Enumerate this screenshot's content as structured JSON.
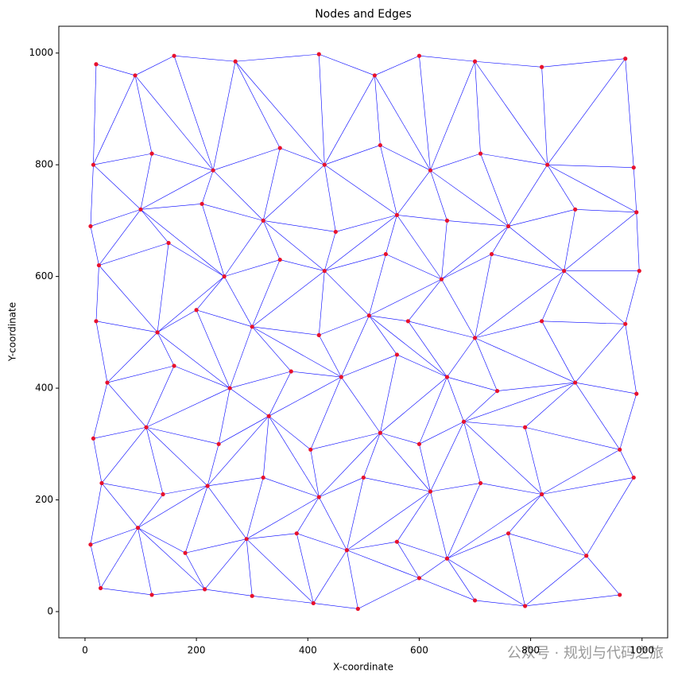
{
  "chart_data": {
    "type": "scatter",
    "title": "Nodes and Edges",
    "x_label": "X-coordinate",
    "y_label": "Y-coordinate",
    "watermark": "公众号 · 规划与代码之旅",
    "node_color": "#e8112d",
    "edge_color": "#0000ff",
    "xlim": [
      -47,
      1046
    ],
    "ylim": [
      -47,
      1048
    ],
    "xticks": [
      0,
      200,
      400,
      600,
      800,
      1000
    ],
    "yticks": [
      0,
      200,
      400,
      600,
      800,
      1000
    ],
    "x": [
      28,
      120,
      215,
      300,
      410,
      490,
      600,
      700,
      790,
      960,
      10,
      95,
      180,
      290,
      380,
      470,
      560,
      650,
      760,
      900,
      30,
      140,
      220,
      320,
      420,
      500,
      620,
      710,
      820,
      985,
      15,
      110,
      240,
      330,
      405,
      530,
      600,
      680,
      790,
      960,
      40,
      160,
      260,
      370,
      460,
      560,
      650,
      740,
      880,
      990,
      20,
      130,
      200,
      300,
      420,
      510,
      580,
      700,
      820,
      970,
      25,
      150,
      250,
      350,
      430,
      540,
      640,
      730,
      860,
      995,
      10,
      100,
      210,
      320,
      450,
      560,
      650,
      760,
      880,
      990,
      15,
      120,
      230,
      350,
      430,
      530,
      620,
      710,
      830,
      985,
      20,
      90,
      160,
      270,
      420,
      520,
      600,
      700,
      820,
      970
    ],
    "y": [
      42,
      30,
      40,
      28,
      15,
      5,
      60,
      20,
      10,
      30,
      120,
      150,
      105,
      130,
      140,
      110,
      125,
      95,
      140,
      100,
      230,
      210,
      225,
      240,
      205,
      240,
      215,
      230,
      210,
      240,
      310,
      330,
      300,
      350,
      290,
      320,
      300,
      340,
      330,
      290,
      410,
      440,
      400,
      430,
      420,
      460,
      420,
      395,
      410,
      390,
      520,
      500,
      540,
      510,
      495,
      530,
      520,
      490,
      520,
      515,
      620,
      660,
      600,
      630,
      610,
      640,
      595,
      640,
      610,
      610,
      690,
      720,
      730,
      700,
      680,
      710,
      700,
      690,
      720,
      715,
      800,
      820,
      790,
      830,
      800,
      835,
      790,
      820,
      800,
      795,
      980,
      960,
      995,
      985,
      998,
      960,
      995,
      985,
      975,
      990
    ],
    "edges": [
      [
        0,
        1
      ],
      [
        1,
        2
      ],
      [
        2,
        3
      ],
      [
        3,
        4
      ],
      [
        4,
        5
      ],
      [
        5,
        6
      ],
      [
        6,
        7
      ],
      [
        7,
        8
      ],
      [
        8,
        9
      ],
      [
        10,
        11
      ],
      [
        11,
        12
      ],
      [
        12,
        13
      ],
      [
        13,
        14
      ],
      [
        14,
        15
      ],
      [
        15,
        16
      ],
      [
        16,
        17
      ],
      [
        17,
        18
      ],
      [
        18,
        19
      ],
      [
        20,
        21
      ],
      [
        21,
        22
      ],
      [
        22,
        23
      ],
      [
        23,
        24
      ],
      [
        24,
        25
      ],
      [
        25,
        26
      ],
      [
        26,
        27
      ],
      [
        27,
        28
      ],
      [
        28,
        29
      ],
      [
        30,
        31
      ],
      [
        31,
        32
      ],
      [
        32,
        33
      ],
      [
        33,
        34
      ],
      [
        34,
        35
      ],
      [
        35,
        36
      ],
      [
        36,
        37
      ],
      [
        37,
        38
      ],
      [
        38,
        39
      ],
      [
        40,
        41
      ],
      [
        41,
        42
      ],
      [
        42,
        43
      ],
      [
        43,
        44
      ],
      [
        44,
        45
      ],
      [
        45,
        46
      ],
      [
        46,
        47
      ],
      [
        47,
        48
      ],
      [
        48,
        49
      ],
      [
        50,
        51
      ],
      [
        51,
        52
      ],
      [
        52,
        53
      ],
      [
        53,
        54
      ],
      [
        54,
        55
      ],
      [
        55,
        56
      ],
      [
        56,
        57
      ],
      [
        57,
        58
      ],
      [
        58,
        59
      ],
      [
        60,
        61
      ],
      [
        61,
        62
      ],
      [
        62,
        63
      ],
      [
        63,
        64
      ],
      [
        64,
        65
      ],
      [
        65,
        66
      ],
      [
        66,
        67
      ],
      [
        67,
        68
      ],
      [
        68,
        69
      ],
      [
        70,
        71
      ],
      [
        71,
        72
      ],
      [
        72,
        73
      ],
      [
        73,
        74
      ],
      [
        74,
        75
      ],
      [
        75,
        76
      ],
      [
        76,
        77
      ],
      [
        77,
        78
      ],
      [
        78,
        79
      ],
      [
        80,
        81
      ],
      [
        81,
        82
      ],
      [
        82,
        83
      ],
      [
        83,
        84
      ],
      [
        84,
        85
      ],
      [
        85,
        86
      ],
      [
        86,
        87
      ],
      [
        87,
        88
      ],
      [
        88,
        89
      ],
      [
        90,
        91
      ],
      [
        91,
        92
      ],
      [
        92,
        93
      ],
      [
        93,
        94
      ],
      [
        94,
        95
      ],
      [
        95,
        96
      ],
      [
        96,
        97
      ],
      [
        97,
        98
      ],
      [
        98,
        99
      ],
      [
        0,
        10
      ],
      [
        1,
        11
      ],
      [
        2,
        12
      ],
      [
        3,
        13
      ],
      [
        4,
        14
      ],
      [
        5,
        15
      ],
      [
        6,
        16
      ],
      [
        7,
        17
      ],
      [
        8,
        18
      ],
      [
        9,
        19
      ],
      [
        10,
        20
      ],
      [
        11,
        21
      ],
      [
        12,
        22
      ],
      [
        13,
        23
      ],
      [
        14,
        24
      ],
      [
        15,
        25
      ],
      [
        16,
        26
      ],
      [
        17,
        27
      ],
      [
        18,
        28
      ],
      [
        19,
        29
      ],
      [
        20,
        30
      ],
      [
        21,
        31
      ],
      [
        22,
        32
      ],
      [
        23,
        33
      ],
      [
        24,
        34
      ],
      [
        25,
        35
      ],
      [
        26,
        36
      ],
      [
        27,
        37
      ],
      [
        28,
        38
      ],
      [
        29,
        39
      ],
      [
        30,
        40
      ],
      [
        31,
        41
      ],
      [
        32,
        42
      ],
      [
        33,
        43
      ],
      [
        34,
        44
      ],
      [
        35,
        45
      ],
      [
        36,
        46
      ],
      [
        37,
        47
      ],
      [
        38,
        48
      ],
      [
        39,
        49
      ],
      [
        40,
        50
      ],
      [
        41,
        51
      ],
      [
        42,
        52
      ],
      [
        43,
        53
      ],
      [
        44,
        54
      ],
      [
        45,
        55
      ],
      [
        46,
        56
      ],
      [
        47,
        57
      ],
      [
        48,
        58
      ],
      [
        49,
        59
      ],
      [
        50,
        60
      ],
      [
        51,
        61
      ],
      [
        52,
        62
      ],
      [
        53,
        63
      ],
      [
        54,
        64
      ],
      [
        55,
        65
      ],
      [
        56,
        66
      ],
      [
        57,
        67
      ],
      [
        58,
        68
      ],
      [
        59,
        69
      ],
      [
        60,
        70
      ],
      [
        61,
        71
      ],
      [
        62,
        72
      ],
      [
        63,
        73
      ],
      [
        64,
        74
      ],
      [
        65,
        75
      ],
      [
        66,
        76
      ],
      [
        67,
        77
      ],
      [
        68,
        78
      ],
      [
        69,
        79
      ],
      [
        70,
        80
      ],
      [
        71,
        81
      ],
      [
        72,
        82
      ],
      [
        73,
        83
      ],
      [
        74,
        84
      ],
      [
        75,
        85
      ],
      [
        76,
        86
      ],
      [
        77,
        87
      ],
      [
        78,
        88
      ],
      [
        79,
        89
      ],
      [
        80,
        90
      ],
      [
        81,
        91
      ],
      [
        82,
        92
      ],
      [
        83,
        93
      ],
      [
        84,
        94
      ],
      [
        85,
        95
      ],
      [
        86,
        96
      ],
      [
        87,
        97
      ],
      [
        88,
        98
      ],
      [
        89,
        99
      ],
      [
        0,
        11
      ],
      [
        2,
        11
      ],
      [
        2,
        13
      ],
      [
        4,
        13
      ],
      [
        4,
        15
      ],
      [
        6,
        15
      ],
      [
        6,
        17
      ],
      [
        8,
        17
      ],
      [
        8,
        19
      ],
      [
        11,
        20
      ],
      [
        11,
        22
      ],
      [
        13,
        22
      ],
      [
        13,
        24
      ],
      [
        15,
        24
      ],
      [
        15,
        26
      ],
      [
        17,
        26
      ],
      [
        17,
        28
      ],
      [
        19,
        28
      ],
      [
        20,
        31
      ],
      [
        22,
        31
      ],
      [
        22,
        33
      ],
      [
        24,
        33
      ],
      [
        24,
        35
      ],
      [
        26,
        35
      ],
      [
        26,
        37
      ],
      [
        28,
        37
      ],
      [
        28,
        39
      ],
      [
        31,
        40
      ],
      [
        31,
        42
      ],
      [
        33,
        42
      ],
      [
        33,
        44
      ],
      [
        35,
        44
      ],
      [
        35,
        46
      ],
      [
        37,
        46
      ],
      [
        37,
        48
      ],
      [
        39,
        48
      ],
      [
        40,
        51
      ],
      [
        42,
        51
      ],
      [
        42,
        53
      ],
      [
        44,
        53
      ],
      [
        44,
        55
      ],
      [
        46,
        55
      ],
      [
        46,
        57
      ],
      [
        48,
        57
      ],
      [
        48,
        59
      ],
      [
        51,
        60
      ],
      [
        51,
        62
      ],
      [
        53,
        62
      ],
      [
        53,
        64
      ],
      [
        55,
        64
      ],
      [
        55,
        66
      ],
      [
        57,
        66
      ],
      [
        57,
        68
      ],
      [
        59,
        68
      ],
      [
        60,
        71
      ],
      [
        62,
        71
      ],
      [
        62,
        73
      ],
      [
        64,
        73
      ],
      [
        64,
        75
      ],
      [
        66,
        75
      ],
      [
        66,
        77
      ],
      [
        68,
        77
      ],
      [
        68,
        79
      ],
      [
        71,
        80
      ],
      [
        71,
        82
      ],
      [
        73,
        82
      ],
      [
        73,
        84
      ],
      [
        75,
        84
      ],
      [
        75,
        86
      ],
      [
        77,
        86
      ],
      [
        77,
        88
      ],
      [
        79,
        88
      ],
      [
        80,
        91
      ],
      [
        82,
        91
      ],
      [
        82,
        93
      ],
      [
        84,
        93
      ],
      [
        84,
        95
      ],
      [
        86,
        95
      ],
      [
        86,
        97
      ],
      [
        88,
        97
      ],
      [
        88,
        99
      ]
    ]
  }
}
